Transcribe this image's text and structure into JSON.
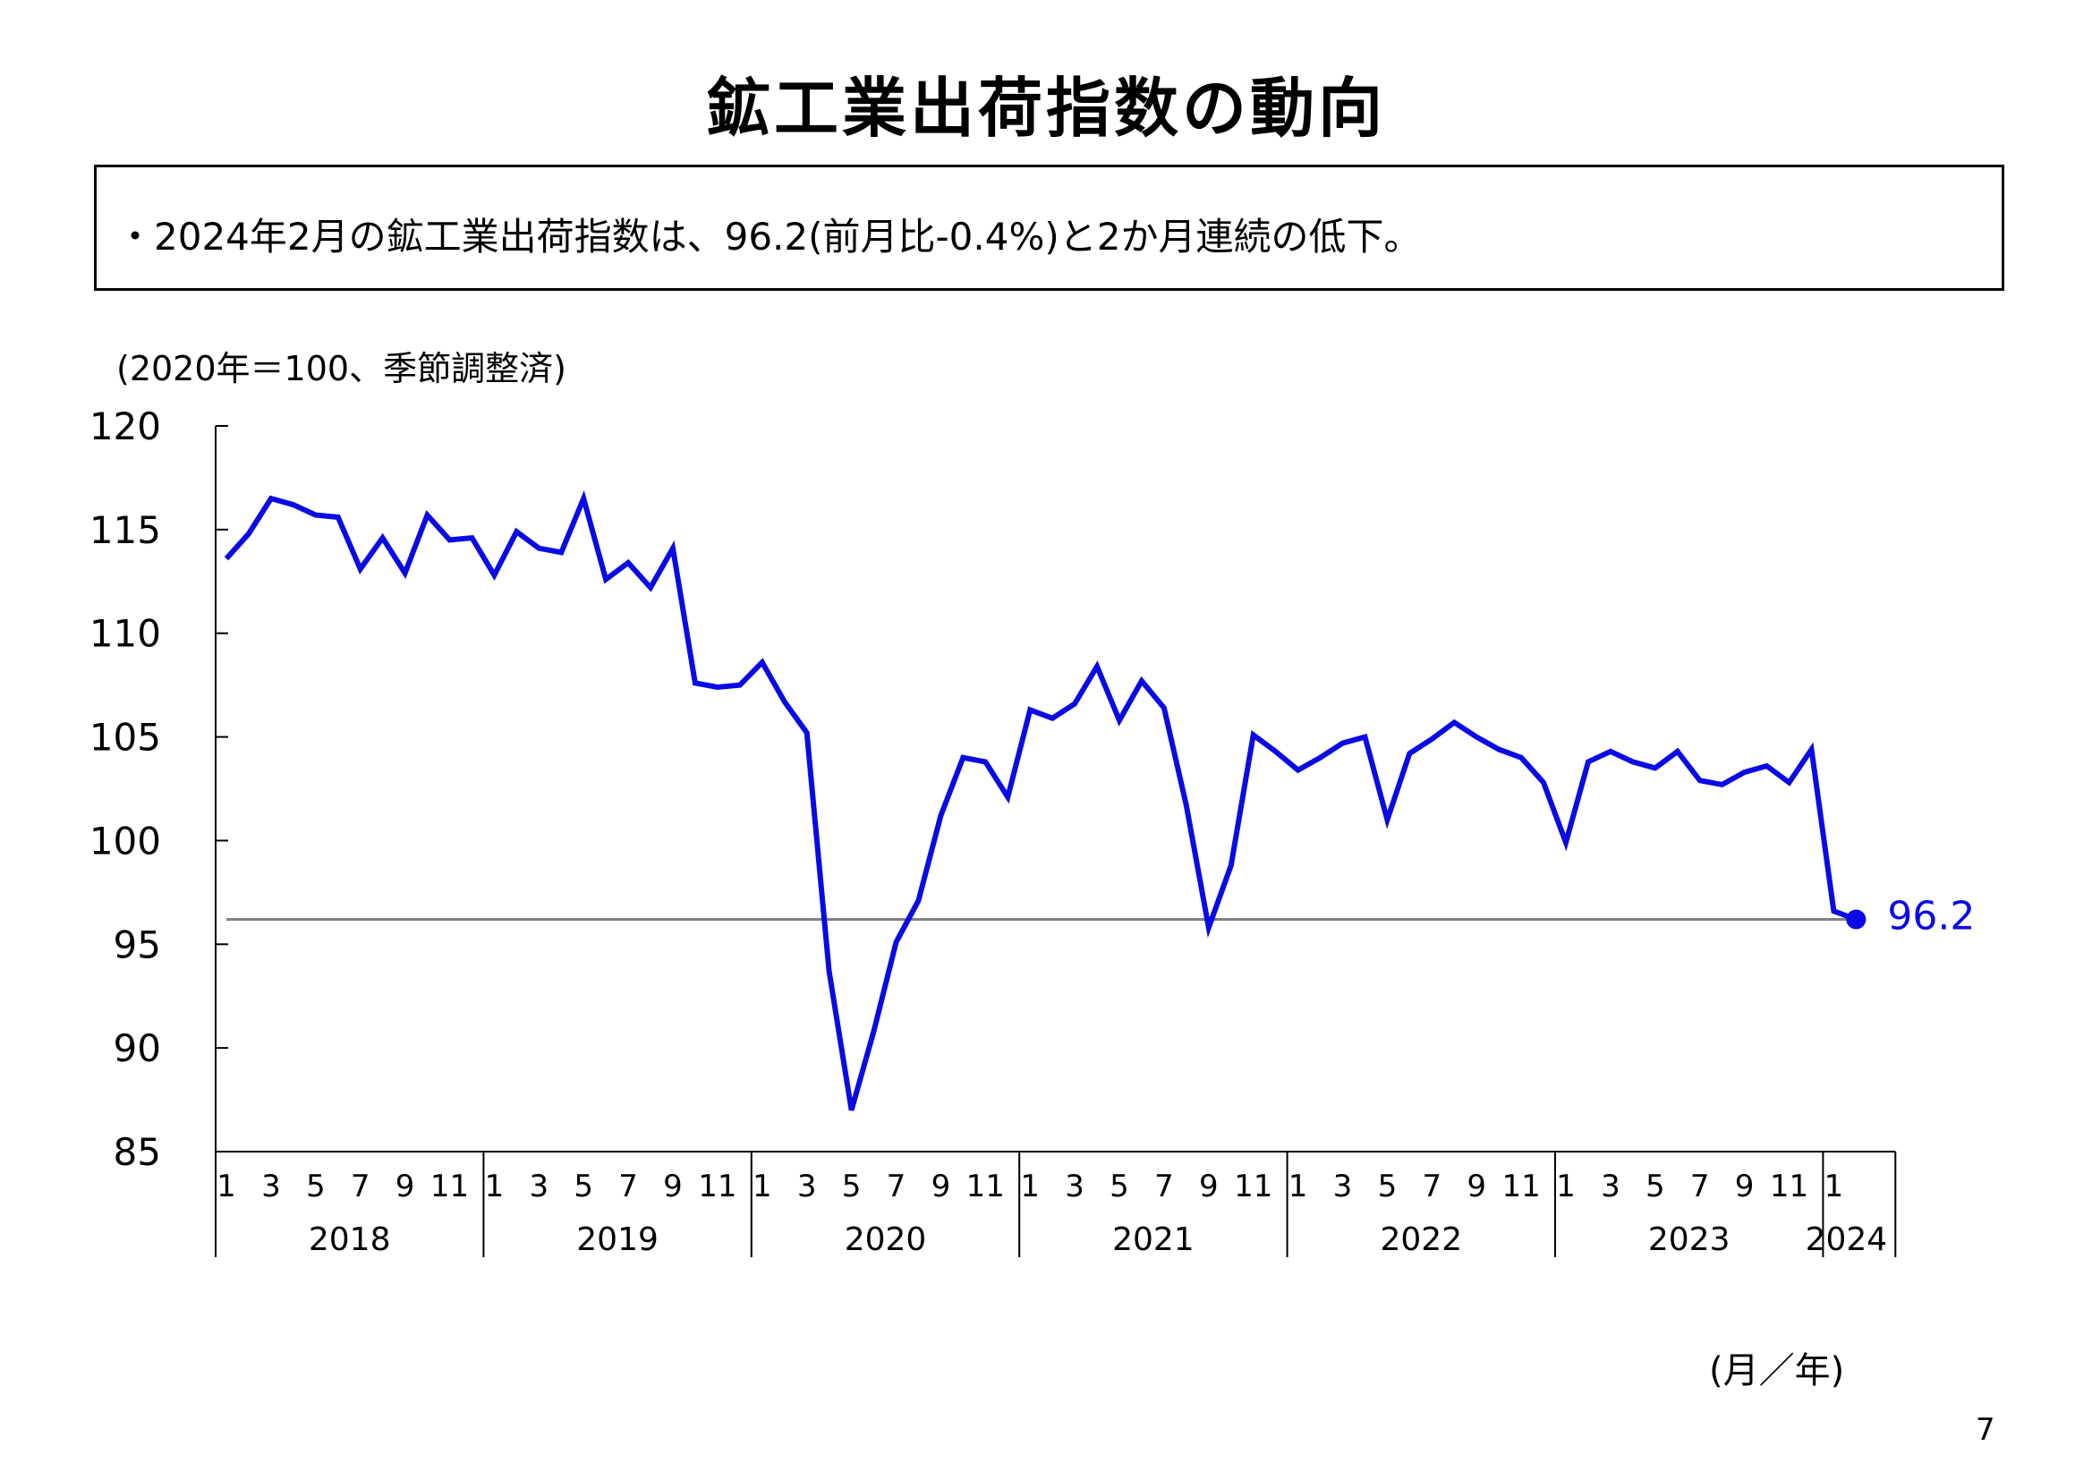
{
  "page": {
    "title": "鉱工業出荷指数の動向",
    "summary": "・2024年2月の鉱工業出荷指数は、96.2(前月比-0.4%)と2か月連続の低下。",
    "page_number": "7"
  },
  "chart_data": {
    "type": "line",
    "unit_label": "(2020年＝100、季節調整済)",
    "x_axis_label": "(月／年)",
    "ylim": [
      85,
      120
    ],
    "y_ticks": [
      85,
      90,
      95,
      100,
      105,
      110,
      115,
      120
    ],
    "years": [
      "2018",
      "2019",
      "2020",
      "2021",
      "2022",
      "2023",
      "2024"
    ],
    "month_ticks": [
      "1",
      "3",
      "5",
      "7",
      "9",
      "11"
    ],
    "latest_label": "96.2",
    "reference_value": 96.2,
    "colors": {
      "series": "#0a0ae6",
      "reference_line": "#808080",
      "label": "#0a0ae6"
    },
    "series": [
      {
        "values": [
          113.6,
          114.8,
          116.5,
          116.2,
          115.7,
          115.6,
          113.1,
          114.6,
          112.9,
          115.7,
          114.5,
          114.6,
          112.8,
          114.9,
          114.1,
          113.9,
          116.5,
          112.6,
          113.4,
          112.2,
          114.1,
          107.6,
          107.4,
          107.5,
          108.6,
          106.7,
          105.2,
          93.7,
          87.0,
          90.8,
          95.1,
          97.1,
          101.2,
          104.0,
          103.8,
          102.1,
          106.3,
          105.9,
          106.6,
          108.4,
          105.8,
          107.7,
          106.4,
          101.7,
          95.8,
          98.8,
          105.1,
          104.3,
          103.4,
          104.0,
          104.7,
          105.0,
          101.0,
          104.2,
          104.9,
          105.7,
          105.0,
          104.4,
          104.0,
          102.8,
          99.9,
          103.8,
          104.3,
          103.8,
          103.5,
          104.3,
          102.9,
          102.7,
          103.3,
          103.6,
          102.8,
          104.4,
          96.6,
          96.2
        ]
      }
    ]
  }
}
